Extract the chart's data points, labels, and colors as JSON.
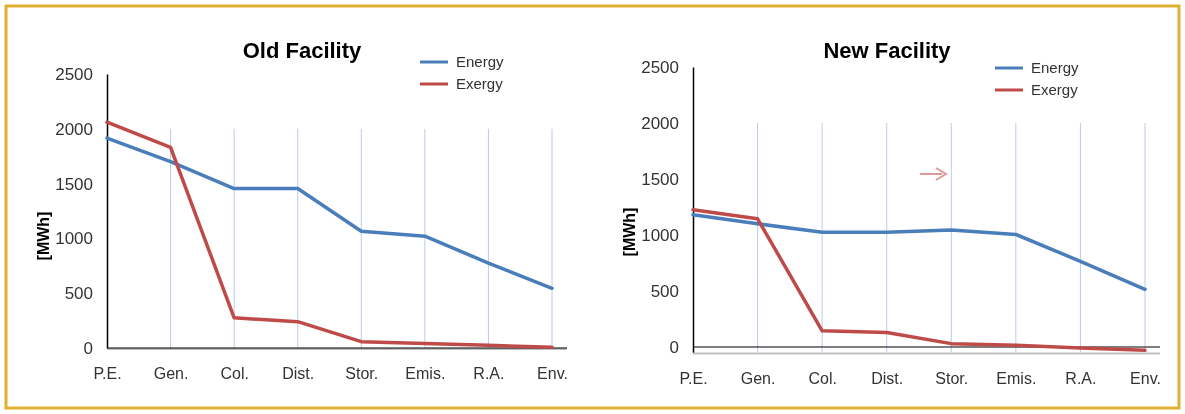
{
  "chart_data": [
    {
      "type": "line",
      "title": "Old Facility",
      "ylabel": "[MWh]",
      "categories": [
        "P.E.",
        "Gen.",
        "Col.",
        "Dist.",
        "Stor.",
        "Emis.",
        "R.A.",
        "Env."
      ],
      "ylim": [
        0,
        2500
      ],
      "yticks": [
        0,
        500,
        1000,
        1500,
        2000,
        2500
      ],
      "grid": "x",
      "legend": "top right",
      "marker": "none",
      "line_style": "solid",
      "series": [
        {
          "name": "Energy",
          "color": "#4a7ebb",
          "values": [
            1915,
            1700,
            1455,
            1455,
            1065,
            1020,
            775,
            545
          ]
        },
        {
          "name": "Exergy",
          "color": "#be4b48",
          "values": [
            2060,
            1830,
            275,
            240,
            58,
            40,
            24,
            7
          ]
        }
      ]
    },
    {
      "type": "line",
      "title": "New Facility",
      "ylabel": "[MWh]",
      "categories": [
        "P.E.",
        "Gen.",
        "Col.",
        "Dist.",
        "Stor.",
        "Emis.",
        "R.A.",
        "Env."
      ],
      "ylim": [
        -50,
        2500
      ],
      "yticks": [
        0,
        500,
        1000,
        1500,
        2000,
        2500
      ],
      "grid": "x",
      "legend": "top right",
      "marker": "none",
      "line_style": "solid",
      "series": [
        {
          "name": "Energy",
          "color": "#4a7ebb",
          "values": [
            1180,
            1100,
            1025,
            1025,
            1045,
            1005,
            765,
            515
          ]
        },
        {
          "name": "Exergy",
          "color": "#be4b48",
          "values": [
            1225,
            1145,
            145,
            130,
            30,
            15,
            -10,
            -30
          ]
        }
      ]
    }
  ]
}
